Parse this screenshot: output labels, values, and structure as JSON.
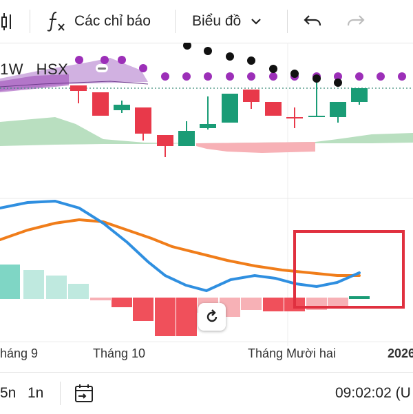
{
  "toolbar": {
    "indicators_label": "Các chỉ báo",
    "chart_type_label": "Biểu đồ"
  },
  "legend": {
    "interval": "1W",
    "exchange": "HSX"
  },
  "xaxis": {
    "labels": [
      "háng 9",
      "Tháng 10",
      "Tháng Mười hai",
      "2026"
    ]
  },
  "bottombar": {
    "range_5": "5n",
    "range_1": "1n",
    "clock": "09:02:02 (U"
  },
  "colors": {
    "up": "#1a9c76",
    "down": "#e8394a",
    "macd": "#2f8fe0",
    "signal": "#f07d1a",
    "cloud_green": "#b9dfc0",
    "cloud_red": "#f7b1b6",
    "highlight_box": "#e0303f",
    "dots_purple": "#9c2fb8",
    "dots_black": "#111111"
  },
  "icons": {
    "indicators": "fx-icon",
    "chart_type": "chevron-down-icon",
    "undo": "undo-icon",
    "redo": "redo-icon",
    "date_range": "calendar-arrow-icon",
    "reset": "reset-rotate-icon"
  }
}
